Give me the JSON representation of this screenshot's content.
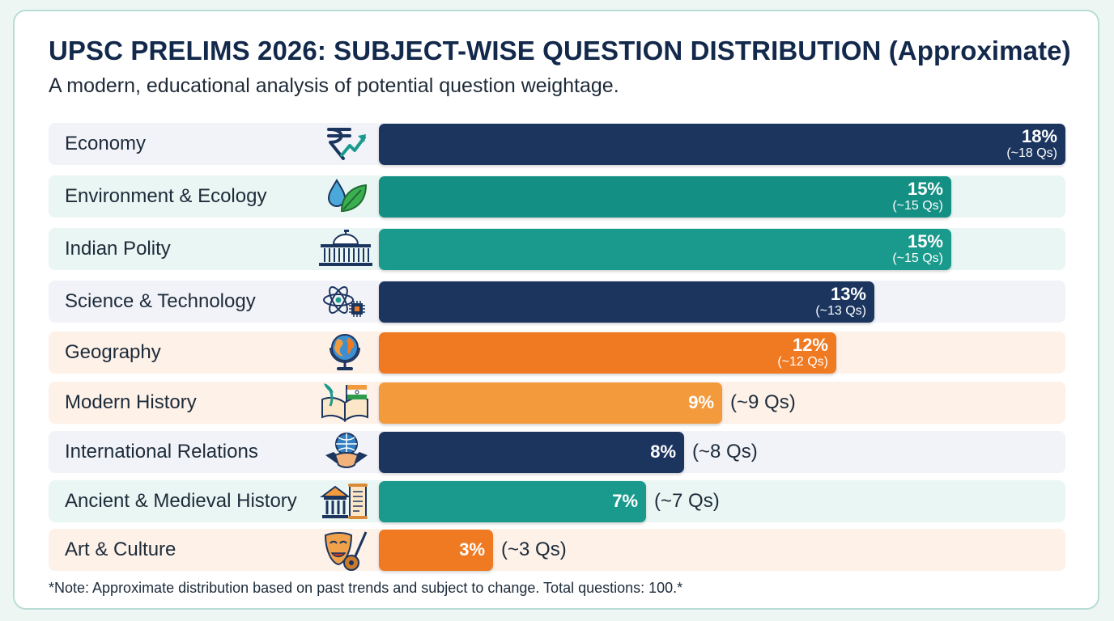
{
  "chart_data": {
    "type": "bar",
    "orientation": "horizontal",
    "title": "UPSC PRELIMS 2026: SUBJECT-WISE QUESTION DISTRIBUTION (Approximate)",
    "subtitle": "A modern, educational analysis of potential question weightage.",
    "unit": "%",
    "xlim": [
      0,
      18
    ],
    "categories": [
      {
        "label": "Economy",
        "value": 18,
        "pct_label": "18%",
        "qs_label": "(~18 Qs)",
        "color": "#1b355f",
        "row_bg": "#f2f3f8",
        "icon": "rupee-growth-icon"
      },
      {
        "label": "Environment & Ecology",
        "value": 15,
        "pct_label": "15%",
        "qs_label": "(~15 Qs)",
        "color": "#138f83",
        "row_bg": "#eaf6f3",
        "icon": "water-leaf-icon"
      },
      {
        "label": "Indian Polity",
        "value": 15,
        "pct_label": "15%",
        "qs_label": "(~15 Qs)",
        "color": "#1a9a8c",
        "row_bg": "#eaf6f3",
        "icon": "parliament-icon"
      },
      {
        "label": "Science & Technology",
        "value": 13,
        "pct_label": "13%",
        "qs_label": "(~13 Qs)",
        "color": "#1b355f",
        "row_bg": "#f2f3f8",
        "icon": "atom-chip-icon"
      },
      {
        "label": "Geography",
        "value": 12,
        "pct_label": "12%",
        "qs_label": "(~12 Qs)",
        "color": "#f07a22",
        "row_bg": "#fdf1e8",
        "icon": "globe-icon"
      },
      {
        "label": "Modern History",
        "value": 9,
        "pct_label": "9%",
        "qs_label": "(~9 Qs)",
        "color": "#f39a3c",
        "row_bg": "#fdf1e8",
        "icon": "book-flag-icon"
      },
      {
        "label": "International Relations",
        "value": 8,
        "pct_label": "8%",
        "qs_label": "(~8 Qs)",
        "color": "#1b355f",
        "row_bg": "#f2f3f8",
        "icon": "handshake-globe-icon"
      },
      {
        "label": "Ancient & Medieval History",
        "value": 7,
        "pct_label": "7%",
        "qs_label": "(~7 Qs)",
        "color": "#1a9a8c",
        "row_bg": "#eaf6f3",
        "icon": "temple-scroll-icon"
      },
      {
        "label": "Art & Culture",
        "value": 3,
        "pct_label": "3%",
        "qs_label": "(~3 Qs)",
        "color": "#f07a22",
        "row_bg": "#fdf1e8",
        "icon": "mask-sitar-icon"
      }
    ]
  },
  "note": "*Note: Approximate distribution based on past trends and subject to change. Total questions: 100.*"
}
